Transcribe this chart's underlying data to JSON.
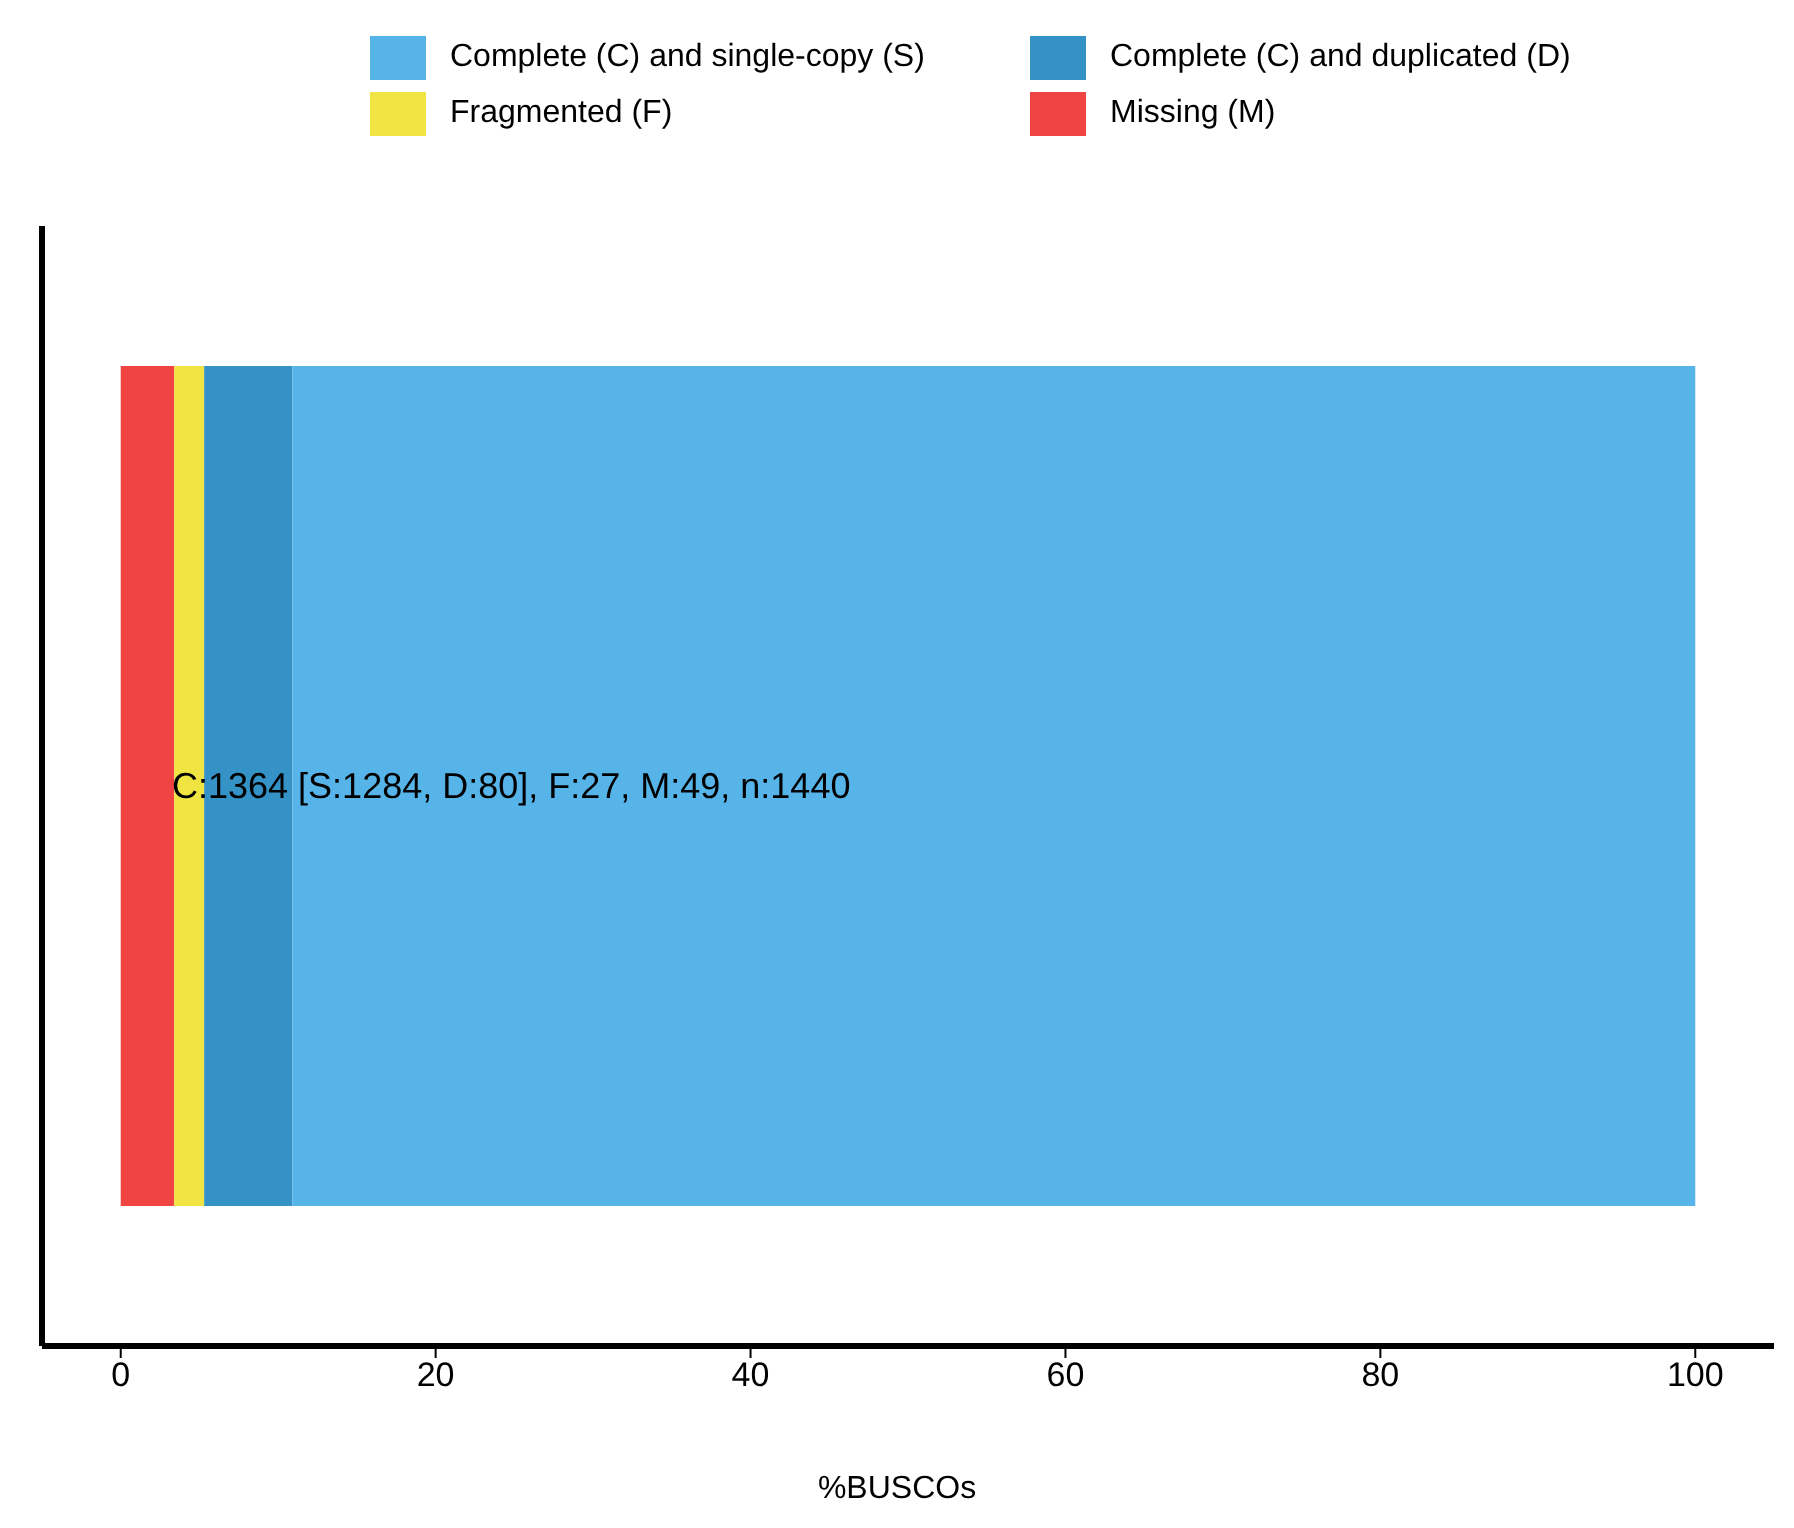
{
  "chart_data": {
    "type": "bar",
    "orientation": "horizontal",
    "stacked": true,
    "categories": [
      null
    ],
    "series": [
      {
        "name": "Missing (M)",
        "color": "#f04442",
        "values": [
          3.4
        ]
      },
      {
        "name": "Fragmented (F)",
        "color": "#f0e442",
        "values": [
          1.9
        ]
      },
      {
        "name": "Complete (C) and duplicated (D)",
        "color": "#3492c7",
        "values": [
          5.6
        ]
      },
      {
        "name": "Complete (C) and single-copy (S)",
        "color": "#56b4e9",
        "values": [
          89.1
        ]
      }
    ],
    "xlabel": "%BUSCOs",
    "xlim": [
      -5,
      105
    ],
    "xticks": [
      0,
      20,
      40,
      60,
      80,
      100
    ],
    "annotations": [
      "C:1364 [S:1284, D:80], F:27, M:49, n:1440"
    ],
    "legend": "top"
  }
}
